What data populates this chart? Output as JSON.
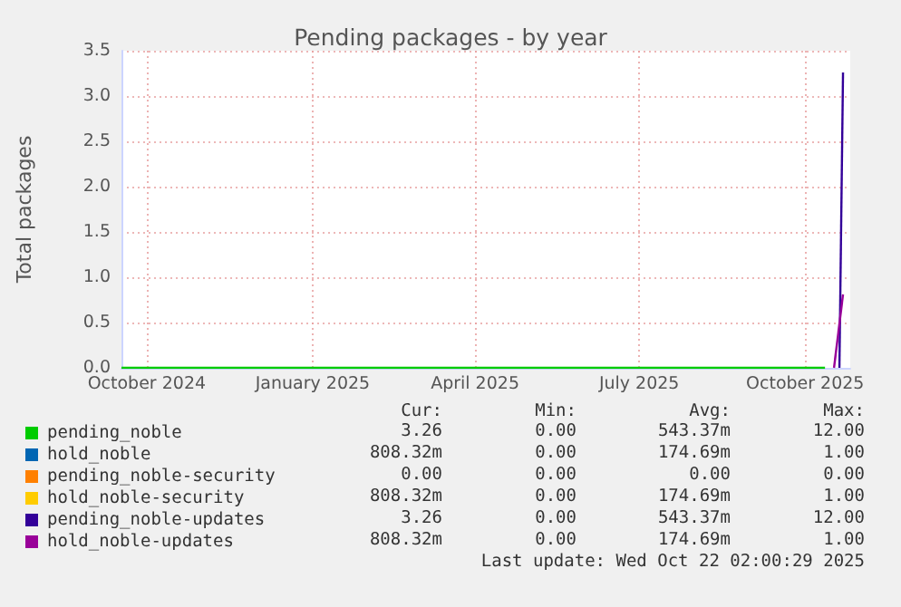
{
  "chart_data": {
    "type": "line",
    "title": "Pending packages - by year",
    "ylabel": "Total packages",
    "x": [
      "2024-09-17",
      "2025-10-12",
      "2025-10-17",
      "2025-10-22"
    ],
    "series": [
      {
        "name": "pending_noble",
        "color": "#00cc00",
        "values": [
          0,
          0,
          null,
          null
        ]
      },
      {
        "name": "hold_noble",
        "color": "#0066b3",
        "values": [
          null,
          null,
          null,
          null
        ]
      },
      {
        "name": "pending_noble-security",
        "color": "#ff8000",
        "values": [
          null,
          null,
          null,
          null
        ]
      },
      {
        "name": "hold_noble-security",
        "color": "#ffcc00",
        "values": [
          null,
          null,
          null,
          null
        ]
      },
      {
        "name": "pending_noble-updates",
        "color": "#330099",
        "x": [
          "2025-10-20",
          "2025-10-22"
        ],
        "values": [
          0,
          3.26
        ]
      },
      {
        "name": "hold_noble-updates",
        "color": "#990099",
        "values": [
          null,
          null,
          0,
          0.81
        ]
      }
    ],
    "xlim": [
      "2024-09-17",
      "2025-10-26"
    ],
    "xticks": [
      {
        "value": "2024-10-01",
        "label": "October 2024"
      },
      {
        "value": "2025-01-01",
        "label": "January 2025"
      },
      {
        "value": "2025-04-01",
        "label": "April 2025"
      },
      {
        "value": "2025-07-01",
        "label": "July 2025"
      },
      {
        "value": "2025-10-01",
        "label": "October 2025"
      }
    ],
    "ylim": [
      0,
      3.5
    ],
    "yticks": [
      {
        "value": 0,
        "label": "0.0"
      },
      {
        "value": 0.5,
        "label": "0.5"
      },
      {
        "value": 1,
        "label": "1.0"
      },
      {
        "value": 1.5,
        "label": "1.5"
      },
      {
        "value": 2,
        "label": "2.0"
      },
      {
        "value": 2.5,
        "label": "2.5"
      },
      {
        "value": 3,
        "label": "3.0"
      },
      {
        "value": 3.5,
        "label": "3.5"
      }
    ],
    "grid": true,
    "legend": "bottom",
    "marker": "none",
    "annotations": [
      "Cur:",
      "Min:",
      "Avg:",
      "Max:",
      "3.26",
      "0.00",
      "543.37m",
      "12.00",
      "808.32m",
      "0.00",
      "174.69m",
      "1.00",
      "0.00",
      "0.00",
      "0.00",
      "0.00",
      "808.32m",
      "0.00",
      "174.69m",
      "1.00",
      "3.26",
      "0.00",
      "543.37m",
      "12.00",
      "808.32m",
      "0.00",
      "174.69m",
      "1.00",
      "Last update: Wed Oct 22 02:00:29 2025"
    ]
  }
}
